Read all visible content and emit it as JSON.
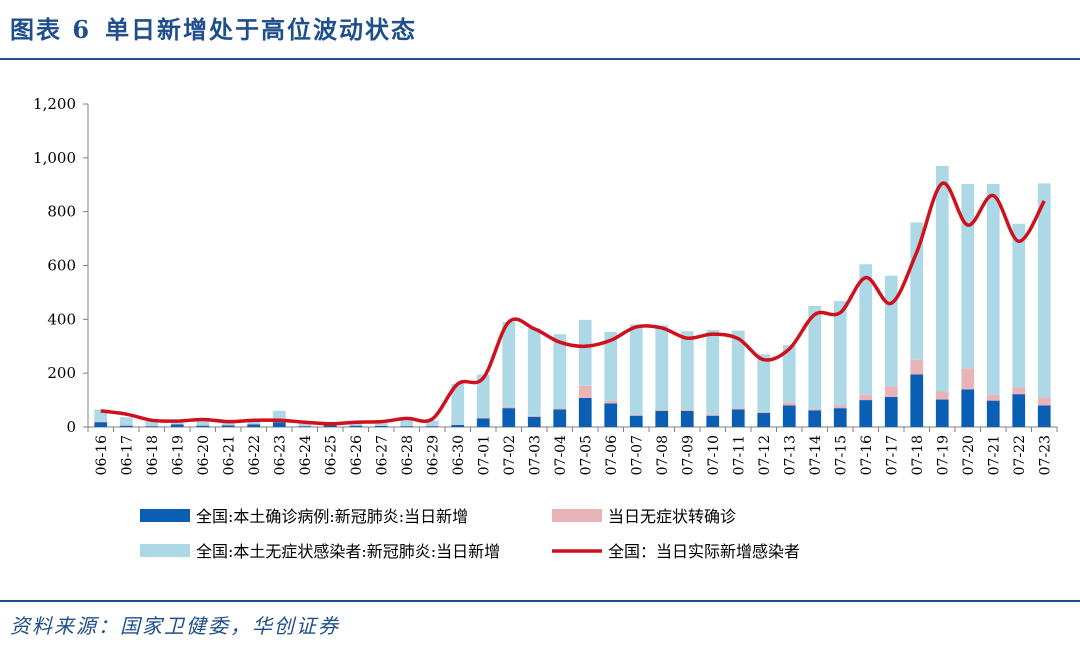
{
  "header": {
    "figure_label": "图表 6",
    "title": "单日新增处于高位波动状态"
  },
  "source": {
    "text": "资料来源：国家卫健委，华创证券"
  },
  "colors": {
    "confirmed": "#0a5eb4",
    "converted": "#e8b4b8",
    "asymptomatic": "#add8e6",
    "actual": "#d0101c",
    "title": "#1f4e8c"
  },
  "chart_data": {
    "type": "bar",
    "stacked": true,
    "title": "单日新增处于高位波动状态",
    "xlabel": "",
    "ylabel": "",
    "ylim": [
      0,
      1200
    ],
    "yticks": [
      0,
      200,
      400,
      600,
      800,
      1000,
      1200
    ],
    "ytick_labels": [
      "0",
      "200",
      "400",
      "600",
      "800",
      "1,000",
      "1,200"
    ],
    "grid": false,
    "legend_position": "bottom",
    "categories": [
      "06-16",
      "06-17",
      "06-18",
      "06-19",
      "06-20",
      "06-21",
      "06-22",
      "06-23",
      "06-24",
      "06-25",
      "06-26",
      "06-27",
      "06-28",
      "06-29",
      "06-30",
      "07-01",
      "07-02",
      "07-03",
      "07-04",
      "07-05",
      "07-06",
      "07-07",
      "07-08",
      "07-09",
      "07-10",
      "07-11",
      "07-12",
      "07-13",
      "07-14",
      "07-15",
      "07-16",
      "07-17",
      "07-18",
      "07-19",
      "07-20",
      "07-21",
      "07-22",
      "07-23"
    ],
    "series": [
      {
        "name": "全国:本土确诊病例:新冠肺炎:当日新增",
        "kind": "bar",
        "values": [
          18,
          5,
          3,
          10,
          5,
          6,
          10,
          18,
          3,
          10,
          5,
          4,
          3,
          3,
          8,
          32,
          70,
          38,
          65,
          108,
          88,
          42,
          60,
          60,
          42,
          65,
          52,
          80,
          62,
          70,
          100,
          112,
          195,
          102,
          140,
          98,
          122,
          80
        ]
      },
      {
        "name": "当日无症状转确诊",
        "kind": "bar",
        "values": [
          2,
          1,
          1,
          1,
          1,
          1,
          1,
          2,
          1,
          1,
          1,
          1,
          1,
          1,
          2,
          3,
          5,
          4,
          5,
          45,
          10,
          4,
          6,
          6,
          4,
          5,
          4,
          12,
          6,
          10,
          20,
          40,
          55,
          30,
          78,
          22,
          25,
          30
        ]
      },
      {
        "name": "全国:本土无症状感染者:新冠肺炎:当日新增",
        "kind": "bar",
        "values": [
          45,
          30,
          20,
          15,
          20,
          12,
          18,
          40,
          10,
          8,
          15,
          15,
          25,
          20,
          150,
          160,
          315,
          325,
          275,
          245,
          255,
          335,
          312,
          290,
          314,
          288,
          214,
          212,
          382,
          388,
          485,
          410,
          510,
          838,
          685,
          783,
          608,
          795
        ]
      },
      {
        "name": "全国：当日实际新增感染者",
        "kind": "line",
        "values": [
          60,
          48,
          25,
          22,
          28,
          20,
          25,
          25,
          18,
          12,
          18,
          20,
          32,
          30,
          160,
          182,
          390,
          365,
          315,
          300,
          322,
          372,
          368,
          330,
          345,
          328,
          250,
          290,
          418,
          425,
          555,
          460,
          650,
          905,
          750,
          860,
          690,
          840
        ]
      }
    ]
  }
}
